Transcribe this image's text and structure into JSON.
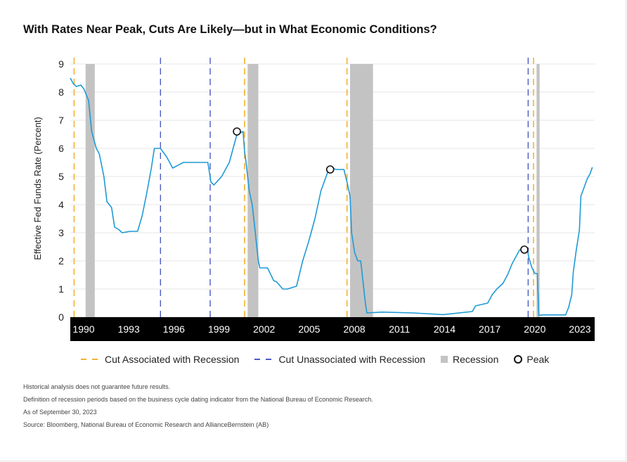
{
  "title": "With Rates Near Peak, Cuts Are Likely—but in What Economic Conditions?",
  "legend": {
    "cut_recession": "Cut Associated with Recession",
    "cut_unassociated": "Cut Unassociated with Recession",
    "recession": "Recession",
    "peak": "Peak"
  },
  "notes": [
    "Historical analysis does not guarantee future results.",
    "Definition of recession periods based on the business cycle dating indicator from the National Bureau of Economic Research.",
    "As of September 30, 2023",
    "Source: Bloomberg, National Bureau of Economic Research and AllianceBernstein (AB)"
  ],
  "colors": {
    "line": "#1f9ad6",
    "cut_recession": "#f3b233",
    "cut_unassociated": "#4a5bc4",
    "recession": "#c3c3c3",
    "axis_band": "#000000",
    "grid": "#e4e4e4"
  },
  "chart_data": {
    "type": "line",
    "xlabel": "",
    "ylabel": "Effective Fed Funds Rate (Percent)",
    "ylim": [
      0,
      9
    ],
    "xlim": [
      1989.6,
      2023.9
    ],
    "yticks": [
      0,
      1,
      2,
      3,
      4,
      5,
      6,
      7,
      8,
      9
    ],
    "xticks": [
      "1990",
      "1993",
      "1996",
      "1999",
      "2002",
      "2005",
      "2008",
      "2011",
      "2014",
      "2017",
      "2020",
      "2023"
    ],
    "grid": "horizontal",
    "legend_position": "bottom",
    "series": [
      {
        "x": [
          1989.6,
          1989.8,
          1990.0,
          1990.3,
          1990.5,
          1990.8,
          1991.0,
          1991.3,
          1991.5,
          1991.8,
          1992.0,
          1992.3,
          1992.5,
          1992.8,
          1993.0,
          1993.5,
          1994.0,
          1994.3,
          1994.6,
          1994.9,
          1995.1,
          1995.5,
          1995.9,
          1996.3,
          1997.0,
          1997.5,
          1998.0,
          1998.6,
          1998.8,
          1999.0,
          1999.5,
          2000.0,
          2000.5,
          2000.9,
          2001.0,
          2001.1,
          2001.3,
          2001.5,
          2001.7,
          2001.9,
          2002.0,
          2002.5,
          2002.9,
          2003.1,
          2003.5,
          2003.8,
          2004.4,
          2004.8,
          2005.2,
          2005.6,
          2006.0,
          2006.5,
          2006.7,
          2007.0,
          2007.5,
          2007.7,
          2007.9,
          2008.0,
          2008.2,
          2008.4,
          2008.6,
          2008.7,
          2008.9,
          2009.0,
          2010.0,
          2012.0,
          2014.0,
          2015.9,
          2016.1,
          2016.9,
          2017.2,
          2017.5,
          2017.9,
          2018.2,
          2018.5,
          2018.8,
          2019.0,
          2019.5,
          2019.6,
          2019.8,
          2020.0,
          2020.15,
          2020.25,
          2020.5,
          2021.0,
          2022.0,
          2022.2,
          2022.4,
          2022.5,
          2022.7,
          2022.9,
          2023.0,
          2023.2,
          2023.4,
          2023.6,
          2023.75
        ],
        "y": [
          8.5,
          8.3,
          8.2,
          8.25,
          8.1,
          7.7,
          6.6,
          6.0,
          5.8,
          5.0,
          4.1,
          3.9,
          3.2,
          3.1,
          3.0,
          3.05,
          3.05,
          3.6,
          4.4,
          5.3,
          6.0,
          6.0,
          5.7,
          5.3,
          5.5,
          5.5,
          5.5,
          5.5,
          4.8,
          4.7,
          5.0,
          5.5,
          6.5,
          6.6,
          5.9,
          5.5,
          4.5,
          4.0,
          3.0,
          2.0,
          1.75,
          1.75,
          1.3,
          1.25,
          1.0,
          1.0,
          1.1,
          2.0,
          2.7,
          3.5,
          4.5,
          5.25,
          5.3,
          5.25,
          5.25,
          4.8,
          4.3,
          3.0,
          2.3,
          2.0,
          2.0,
          1.5,
          0.5,
          0.15,
          0.18,
          0.15,
          0.09,
          0.2,
          0.4,
          0.5,
          0.8,
          1.0,
          1.2,
          1.5,
          1.9,
          2.2,
          2.4,
          2.38,
          2.1,
          1.75,
          1.55,
          1.55,
          0.06,
          0.08,
          0.08,
          0.08,
          0.35,
          0.8,
          1.6,
          2.4,
          3.1,
          4.3,
          4.6,
          4.9,
          5.1,
          5.33
        ]
      }
    ],
    "recessions": [
      [
        1990.6,
        1991.2
      ],
      [
        2001.2,
        2001.9
      ],
      [
        2007.9,
        2009.4
      ],
      [
        2020.1,
        2020.3
      ]
    ],
    "cuts_associated_with_recession": [
      1989.85,
      2001.0,
      2007.7,
      2019.9
    ],
    "cuts_unassociated_with_recession": [
      1995.5,
      1998.75,
      2019.55
    ],
    "peaks": [
      {
        "x": 2000.5,
        "y": 6.6
      },
      {
        "x": 2006.6,
        "y": 5.25
      },
      {
        "x": 2019.3,
        "y": 2.4
      }
    ]
  }
}
